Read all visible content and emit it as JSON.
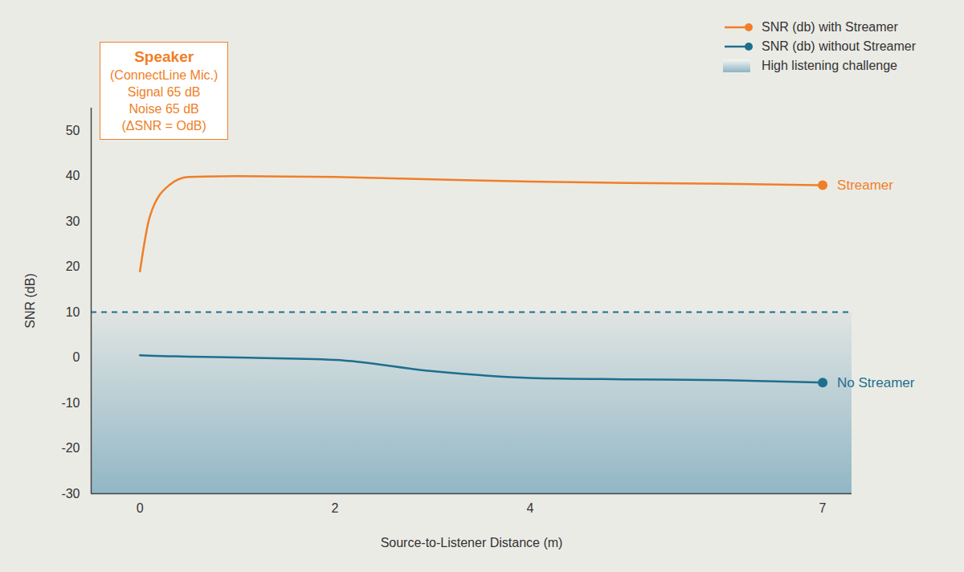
{
  "chart_data": {
    "type": "line",
    "x_label": "Source-to-Listener Distance (m)",
    "y_label": "SNR (dB)",
    "x": [
      0,
      0.1,
      0.3,
      0.5,
      1,
      2,
      3,
      4,
      5,
      6,
      7
    ],
    "series": [
      {
        "name": "SNR (db) with Streamer",
        "end_label": "Streamer",
        "color": "#f07f27",
        "marker": "dot",
        "values": [
          19,
          31,
          38,
          39.8,
          40,
          39.8,
          39.3,
          38.8,
          38.5,
          38.3,
          38
        ]
      },
      {
        "name": "SNR (db) without Streamer",
        "end_label": "No Streamer",
        "color": "#1e6f8e",
        "marker": "dot",
        "values": [
          0.5,
          0.4,
          0.3,
          0.2,
          0,
          -0.5,
          -3,
          -4.5,
          -4.8,
          -5,
          -5.5
        ]
      }
    ],
    "xlim": [
      -0.5,
      7.3
    ],
    "xticks": [
      0,
      2,
      4,
      7
    ],
    "ylim": [
      -30,
      55
    ],
    "yticks": [
      -30,
      -20,
      -10,
      0,
      10,
      20,
      30,
      40,
      50
    ],
    "challenge_zone": {
      "name": "High listening challenge",
      "threshold": 10,
      "color": "#8db4c4"
    },
    "speaker_box": [
      "Speaker",
      "(ConnectLine Mic.)",
      "Signal 65 dB",
      "Noise 65 dB",
      "(ΔSNR = OdB)"
    ],
    "legend": "top-right",
    "grid": false
  }
}
